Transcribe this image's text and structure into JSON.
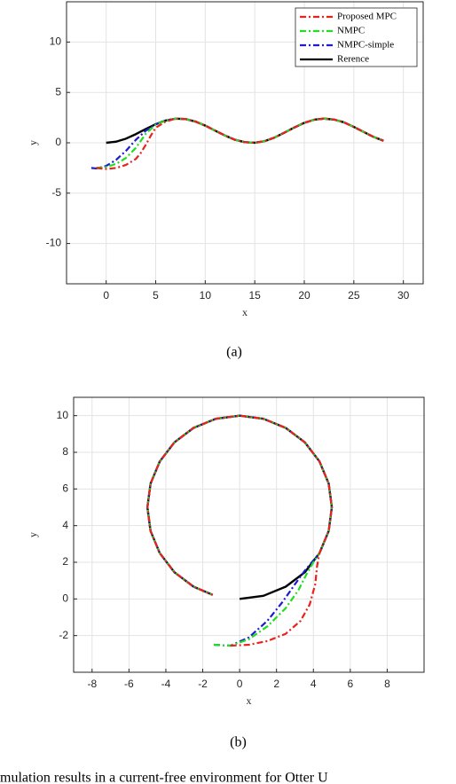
{
  "chart_data": [
    {
      "type": "line",
      "label": "(a)",
      "xlabel": "x",
      "ylabel": "y",
      "xlim": [
        -4,
        32
      ],
      "ylim": [
        -14,
        14
      ],
      "xticks": [
        0,
        5,
        10,
        15,
        20,
        25,
        30
      ],
      "yticks": [
        -10,
        -5,
        0,
        5,
        10
      ],
      "grid": true,
      "legend": "upper right",
      "series": [
        {
          "name": "Proposed MPC",
          "color": "#e8221c",
          "linestyle": "-.",
          "x": [
            -1,
            0,
            1,
            2,
            3,
            3.5,
            4,
            4.5,
            5,
            6,
            7,
            8,
            9,
            10,
            11,
            12,
            13,
            14,
            15,
            16,
            17,
            18,
            19,
            20,
            21,
            22,
            23,
            24,
            25,
            26,
            27,
            28
          ],
          "values": [
            -2.5,
            -2.6,
            -2.5,
            -2.2,
            -1.6,
            -1,
            -0.2,
            0.7,
            1.5,
            2.1,
            2.4,
            2.36,
            2.11,
            1.71,
            1.21,
            0.72,
            0.3,
            0.06,
            0.01,
            0.16,
            0.52,
            1.01,
            1.52,
            1.98,
            2.29,
            2.4,
            2.31,
            2.03,
            1.58,
            1.07,
            0.58,
            0.2
          ]
        },
        {
          "name": "NMPC",
          "color": "#22dd22",
          "linestyle": "-.",
          "x": [
            -1,
            0,
            1,
            2,
            3,
            3.5,
            4,
            5,
            6,
            7,
            8,
            9,
            10,
            11,
            12,
            13,
            14,
            15,
            16,
            17,
            18,
            19,
            20,
            21,
            22,
            23,
            24,
            25,
            26,
            27,
            28
          ],
          "values": [
            -2.5,
            -2.4,
            -2.1,
            -1.5,
            -0.5,
            0.2,
            0.9,
            1.8,
            2.2,
            2.4,
            2.36,
            2.11,
            1.71,
            1.21,
            0.72,
            0.3,
            0.06,
            0.01,
            0.16,
            0.52,
            1.01,
            1.52,
            1.98,
            2.29,
            2.4,
            2.31,
            2.03,
            1.58,
            1.07,
            0.58,
            0.2
          ]
        },
        {
          "name": "NMPC-simple",
          "color": "#1c1cd0",
          "linestyle": "-.",
          "x": [
            -1.5,
            -1,
            0,
            1,
            2,
            3,
            4,
            5,
            6,
            7,
            8,
            9,
            10,
            11,
            12,
            13,
            14,
            15,
            16,
            17,
            18,
            19,
            20,
            21,
            22,
            23,
            24,
            25,
            26,
            27,
            28
          ],
          "values": [
            -2.5,
            -2.55,
            -2.3,
            -1.7,
            -0.8,
            0.3,
            1.2,
            1.85,
            2.2,
            2.4,
            2.36,
            2.11,
            1.71,
            1.21,
            0.72,
            0.3,
            0.06,
            0.01,
            0.16,
            0.52,
            1.01,
            1.52,
            1.98,
            2.29,
            2.4,
            2.31,
            2.03,
            1.58,
            1.07,
            0.58,
            0.2
          ]
        },
        {
          "name": "Rerence",
          "color": "#000000",
          "linestyle": "-",
          "x": [
            0,
            1,
            2,
            3,
            4,
            5,
            6,
            7,
            8,
            9,
            10,
            11,
            12,
            13,
            14,
            15,
            16,
            17,
            18,
            19,
            20,
            21,
            22,
            23,
            24,
            25,
            26,
            27,
            28
          ],
          "values": [
            0,
            0.11,
            0.41,
            0.86,
            1.37,
            1.84,
            2.21,
            2.39,
            2.36,
            2.11,
            1.71,
            1.21,
            0.72,
            0.3,
            0.06,
            0.01,
            0.16,
            0.52,
            1.01,
            1.52,
            1.98,
            2.29,
            2.4,
            2.31,
            2.03,
            1.58,
            1.07,
            0.58,
            0.2
          ]
        }
      ]
    },
    {
      "type": "line",
      "label": "(b)",
      "xlabel": "x",
      "ylabel": "y",
      "xlim": [
        -9,
        10
      ],
      "ylim": [
        -4,
        11
      ],
      "xticks": [
        -8,
        -6,
        -4,
        -2,
        0,
        2,
        4,
        6,
        8
      ],
      "yticks": [
        -2,
        0,
        2,
        4,
        6,
        8,
        10
      ],
      "grid": true,
      "series": [
        {
          "name": "Proposed MPC",
          "color": "#e8221c",
          "linestyle": "-.",
          "x": [
            -0.5,
            0.5,
            1.5,
            2.5,
            3.3,
            3.8,
            4.1,
            4.2,
            4.33,
            4.83,
            5,
            4.83,
            4.33,
            3.54,
            2.5,
            1.29,
            0,
            -1.29,
            -2.5,
            -3.54,
            -4.33,
            -4.83,
            -5,
            -4.83,
            -4.33,
            -3.54,
            -2.5,
            -1.46
          ],
          "values": [
            -2.55,
            -2.5,
            -2.3,
            -1.9,
            -1.2,
            -0.3,
            0.8,
            1.8,
            2.5,
            3.71,
            5,
            6.29,
            7.5,
            8.54,
            9.33,
            9.83,
            10,
            9.83,
            9.33,
            8.54,
            7.5,
            6.29,
            5,
            3.71,
            2.5,
            1.46,
            0.67,
            0.22
          ]
        },
        {
          "name": "NMPC",
          "color": "#22dd22",
          "linestyle": "-.",
          "x": [
            -1.4,
            -0.5,
            0.5,
            1.5,
            2.5,
            3.2,
            3.6,
            4,
            4.33,
            4.83,
            5,
            4.83,
            4.33,
            3.54,
            2.5,
            1.29,
            0,
            -1.29,
            -2.5,
            -3.54,
            -4.33,
            -4.83,
            -5,
            -4.83,
            -4.33,
            -3.54,
            -2.5,
            -1.46
          ],
          "values": [
            -2.5,
            -2.55,
            -2.2,
            -1.5,
            -0.5,
            0.5,
            1.3,
            2,
            2.5,
            3.71,
            5,
            6.29,
            7.5,
            8.54,
            9.33,
            9.83,
            10,
            9.83,
            9.33,
            8.54,
            7.5,
            6.29,
            5,
            3.71,
            2.5,
            1.46,
            0.67,
            0.22
          ]
        },
        {
          "name": "NMPC-simple",
          "color": "#1c1cd0",
          "linestyle": "-.",
          "x": [
            -1.4,
            -0.5,
            0.5,
            1.5,
            2.3,
            3,
            3.5,
            4.33,
            4.83,
            5,
            4.83,
            4.33,
            3.54,
            2.5,
            1.29,
            0,
            -1.29,
            -2.5,
            -3.54,
            -4.33,
            -4.83,
            -5,
            -4.83,
            -4.33,
            -3.54,
            -2.5,
            -1.46
          ],
          "values": [
            -2.5,
            -2.55,
            -2.1,
            -1.2,
            -0.2,
            0.8,
            1.5,
            2.5,
            3.71,
            5,
            6.29,
            7.5,
            8.54,
            9.33,
            9.83,
            10,
            9.83,
            9.33,
            8.54,
            7.5,
            6.29,
            5,
            3.71,
            2.5,
            1.46,
            0.67,
            0.22
          ]
        },
        {
          "name": "Rerence",
          "color": "#000000",
          "linestyle": "-",
          "x": [
            0,
            1.29,
            2.5,
            3.54,
            4.33,
            4.83,
            5,
            4.83,
            4.33,
            3.54,
            2.5,
            1.29,
            0,
            -1.29,
            -2.5,
            -3.54,
            -4.33,
            -4.83,
            -5,
            -4.83,
            -4.33,
            -3.54,
            -2.5,
            -1.46
          ],
          "values": [
            0,
            0.17,
            0.67,
            1.46,
            2.5,
            3.71,
            5,
            6.29,
            7.5,
            8.54,
            9.33,
            9.83,
            10,
            9.83,
            9.33,
            8.54,
            7.5,
            6.29,
            5,
            3.71,
            2.5,
            1.46,
            0.67,
            0.22
          ]
        }
      ]
    }
  ],
  "caption": "mulation results in a current-free environment for Otter U"
}
